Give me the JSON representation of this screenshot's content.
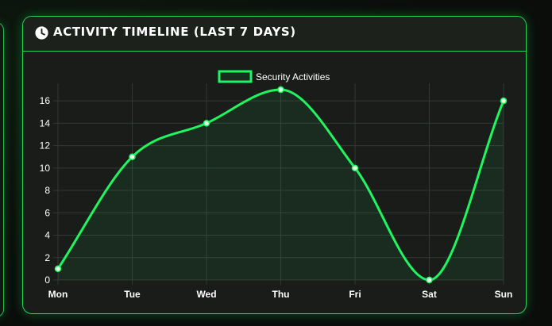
{
  "header": {
    "title": "Activity Timeline (Last 7 Days)",
    "icon": "clock-icon"
  },
  "colors": {
    "accent": "#1ff560",
    "border": "#22d55a",
    "background": "#1a1c1a",
    "grid": "#333833"
  },
  "chart_data": {
    "type": "line",
    "categories": [
      "Mon",
      "Tue",
      "Wed",
      "Thu",
      "Fri",
      "Sat",
      "Sun"
    ],
    "series": [
      {
        "name": "Security Activities",
        "values": [
          1,
          11,
          14,
          17,
          10,
          0,
          16
        ]
      }
    ],
    "ylim": [
      0,
      17
    ],
    "yticks": [
      0,
      2,
      4,
      6,
      8,
      10,
      12,
      14,
      16
    ],
    "grid": true,
    "fill": true,
    "smooth": true,
    "legend_position": "top-center"
  }
}
